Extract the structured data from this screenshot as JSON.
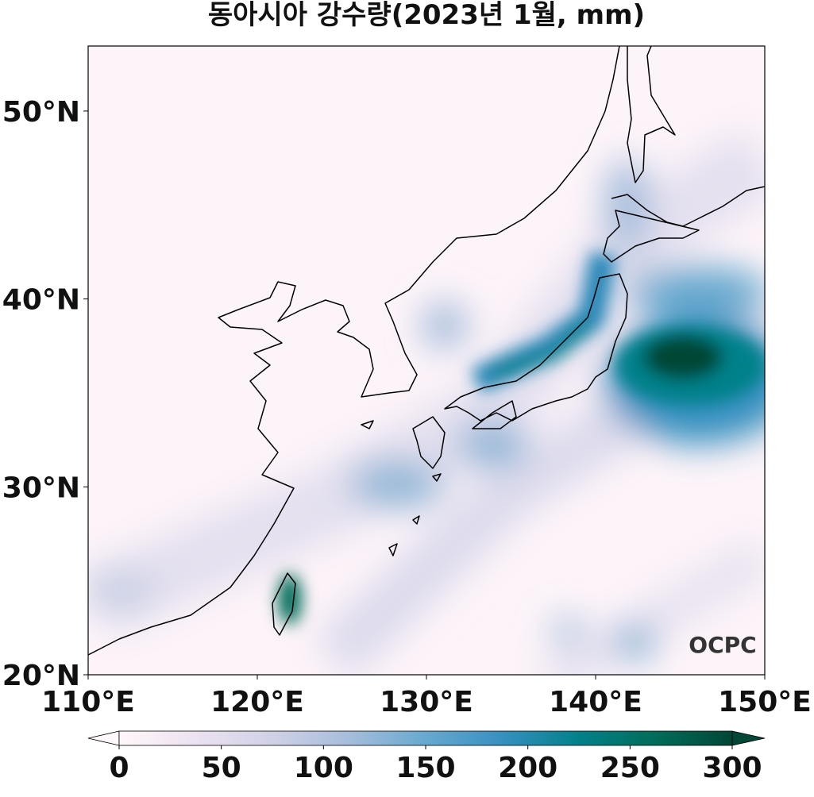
{
  "title": "동아시아 강수량(2023년 1월, mm)",
  "map": {
    "xlim": [
      110,
      150
    ],
    "ylim": [
      20,
      53.46
    ],
    "xticks": [
      {
        "value": 110,
        "label": "110°E"
      },
      {
        "value": 120,
        "label": "120°E"
      },
      {
        "value": 130,
        "label": "130°E"
      },
      {
        "value": 140,
        "label": "140°E"
      },
      {
        "value": 150,
        "label": "150°E"
      }
    ],
    "yticks": [
      {
        "value": 20,
        "label": "20°N"
      },
      {
        "value": 30,
        "label": "30°N"
      },
      {
        "value": 40,
        "label": "40°N"
      },
      {
        "value": 50,
        "label": "50°N"
      }
    ]
  },
  "colorbar": {
    "range": [
      0,
      300
    ],
    "ticks": [
      0,
      50,
      100,
      150,
      200,
      250,
      300
    ],
    "colors": [
      "#fff7fb",
      "#ece2f0",
      "#d0d1e6",
      "#a6bddb",
      "#67a9cf",
      "#3690c0",
      "#02818a",
      "#016c59",
      "#014636"
    ]
  },
  "logo": "OCPC"
}
